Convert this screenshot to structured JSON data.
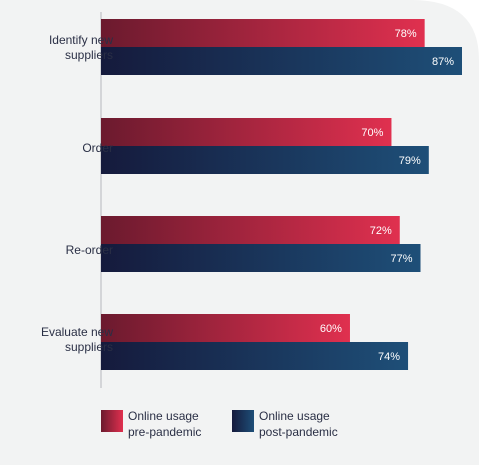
{
  "chart_data": {
    "type": "bar",
    "orientation": "horizontal",
    "categories": [
      "Identify new\nsuppliers",
      "Order",
      "Re-order",
      "Evaluate new\nsuppliers"
    ],
    "series": [
      {
        "name": "Online usage\npre-pandemic",
        "values": [
          78,
          70,
          72,
          60
        ],
        "labels": [
          "78%",
          "70%",
          "72%",
          "60%"
        ],
        "color_from": "#6b1a2e",
        "color_to": "#e0304f"
      },
      {
        "name": "Online usage\npost-pandemic",
        "values": [
          87,
          79,
          77,
          74
        ],
        "labels": [
          "87%",
          "79%",
          "77%",
          "74%"
        ],
        "color_from": "#151a3c",
        "color_to": "#1e4f78"
      }
    ],
    "xlim": [
      0,
      100
    ],
    "grid": false,
    "legend_position": "bottom"
  },
  "colors": {
    "panel_bg": "#f2f3f3",
    "axis_line": "#c9cbd0",
    "label_text": "#2a2f45",
    "bar_value_text": "#ffffff"
  }
}
